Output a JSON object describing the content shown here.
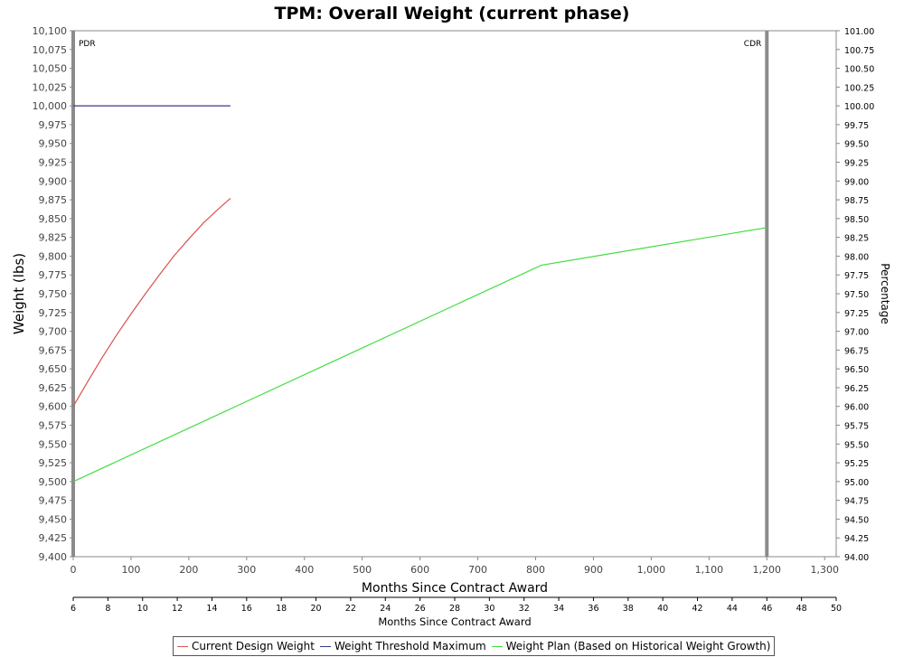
{
  "chart_data": {
    "type": "line",
    "title": "TPM: Overall Weight (current phase)",
    "xlabel": "Months Since Contract Award",
    "ylabel": "Weight (lbs)",
    "y2label": "Percentage",
    "xlim": [
      0,
      1320
    ],
    "ylim": [
      9400,
      10100
    ],
    "y2lim": [
      94.0,
      101.0
    ],
    "x_ticks": [
      0,
      100,
      200,
      300,
      400,
      500,
      600,
      700,
      800,
      900,
      1000,
      1100,
      1200,
      1300
    ],
    "x_tick_labels": [
      "0",
      "100",
      "200",
      "300",
      "400",
      "500",
      "600",
      "700",
      "800",
      "900",
      "1,000",
      "1,100",
      "1,200",
      "1,300"
    ],
    "y_ticks": [
      9400,
      9425,
      9450,
      9475,
      9500,
      9525,
      9550,
      9575,
      9600,
      9625,
      9650,
      9675,
      9700,
      9725,
      9750,
      9775,
      9800,
      9825,
      9850,
      9875,
      9900,
      9925,
      9950,
      9975,
      10000,
      10025,
      10050,
      10075,
      10100
    ],
    "y_tick_labels": [
      "9,400",
      "9,425",
      "9,450",
      "9,475",
      "9,500",
      "9,525",
      "9,550",
      "9,575",
      "9,600",
      "9,625",
      "9,650",
      "9,675",
      "9,700",
      "9,725",
      "9,750",
      "9,775",
      "9,800",
      "9,825",
      "9,850",
      "9,875",
      "9,900",
      "9,925",
      "9,950",
      "9,975",
      "10,000",
      "10,025",
      "10,050",
      "10,075",
      "10,100"
    ],
    "y2_tick_labels": [
      "94.00",
      "94.25",
      "94.50",
      "94.75",
      "95.00",
      "95.25",
      "95.50",
      "95.75",
      "96.00",
      "96.25",
      "96.50",
      "96.75",
      "97.00",
      "97.25",
      "97.50",
      "97.75",
      "98.00",
      "98.25",
      "98.50",
      "98.75",
      "99.00",
      "99.25",
      "99.50",
      "99.75",
      "100.00",
      "100.25",
      "100.50",
      "100.75",
      "101.00"
    ],
    "secondary_x_axis": {
      "label": "Months Since Contract Award",
      "range": [
        6,
        50
      ],
      "ticks": [
        6,
        8,
        10,
        12,
        14,
        16,
        18,
        20,
        22,
        24,
        26,
        28,
        30,
        32,
        34,
        36,
        38,
        40,
        42,
        44,
        46,
        48,
        50
      ],
      "tick_labels": [
        "6",
        "8",
        "10",
        "12",
        "14",
        "16",
        "18",
        "20",
        "22",
        "24",
        "26",
        "28",
        "30",
        "32",
        "34",
        "36",
        "38",
        "40",
        "42",
        "44",
        "46",
        "48",
        "50"
      ]
    },
    "milestones": [
      {
        "label": "PDR",
        "x": 0
      },
      {
        "label": "CDR",
        "x": 1200
      }
    ],
    "series": [
      {
        "name": "Current Design Weight",
        "color": "#d9534f",
        "x": [
          0,
          25,
          50,
          75,
          100,
          125,
          150,
          175,
          200,
          225,
          250,
          272
        ],
        "y": [
          9600,
          9633,
          9665,
          9695,
          9723,
          9750,
          9776,
          9801,
          9823,
          9844,
          9862,
          9877
        ]
      },
      {
        "name": "Weight Threshold Maximum",
        "color": "#3a3a8c",
        "x": [
          0,
          272
        ],
        "y": [
          10000,
          10000
        ]
      },
      {
        "name": "Weight Plan (Based on Historical Weight Growth)",
        "color": "#44dd44",
        "x": [
          0,
          810,
          1200
        ],
        "y": [
          9500,
          9788,
          9838
        ]
      }
    ],
    "legend": "bottom",
    "grid": false
  }
}
